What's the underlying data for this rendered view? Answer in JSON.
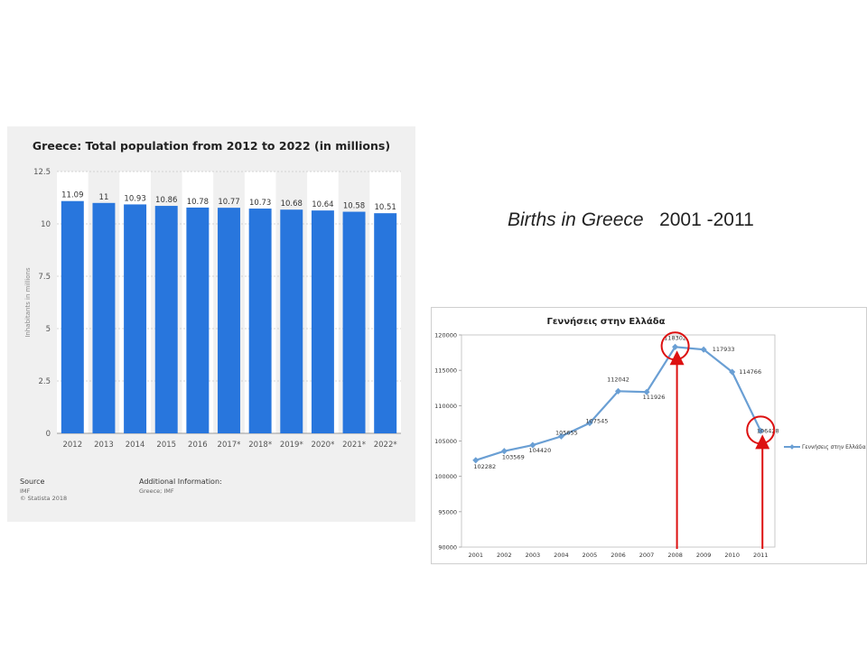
{
  "heading": {
    "italic_part": "Births in Greece",
    "years_part": "2001 -2011"
  },
  "bar_source": {
    "label": "Source",
    "source": "IMF",
    "copyright": "© Statista 2018",
    "additional_label": "Additional Information:",
    "additional_text": "Greece; IMF"
  },
  "colors": {
    "bar": "#2876dd",
    "line": "#6a9fd4",
    "annotation": "#dd1111"
  },
  "chart_data": [
    {
      "type": "bar",
      "title": "Greece: Total population from 2012 to 2022 (in millions)",
      "xlabel": "",
      "ylabel": "Inhabitants in millions",
      "categories": [
        "2012",
        "2013",
        "2014",
        "2015",
        "2016",
        "2017*",
        "2018*",
        "2019*",
        "2020*",
        "2021*",
        "2022*"
      ],
      "values": [
        11.09,
        11,
        10.93,
        10.86,
        10.78,
        10.77,
        10.73,
        10.68,
        10.64,
        10.58,
        10.51
      ],
      "data_labels": [
        "11.09",
        "11",
        "10.93",
        "10.86",
        "10.78",
        "10.77",
        "10.73",
        "10.68",
        "10.64",
        "10.58",
        "10.51"
      ],
      "y_ticks": [
        "0",
        "2.5",
        "5",
        "7.5",
        "10",
        "12.5"
      ],
      "ylim": [
        0,
        12.5
      ],
      "grid": true,
      "legend": "none"
    },
    {
      "type": "line",
      "title": "Γεννήσεις στην Ελλάδα",
      "xlabel": "",
      "ylabel": "",
      "x": [
        "2001",
        "2002",
        "2003",
        "2004",
        "2005",
        "2006",
        "2007",
        "2008",
        "2009",
        "2010",
        "2011"
      ],
      "series": [
        {
          "name": "Γεννήσεις στην Ελλάδα",
          "values": [
            102282,
            103569,
            104420,
            105655,
            107545,
            112042,
            111926,
            118302,
            117933,
            114766,
            106428
          ],
          "labels": [
            "102282",
            "103569",
            "104420",
            "105655",
            "107545",
            "112042",
            "111926",
            "118302",
            "117933",
            "114766",
            "106428"
          ]
        }
      ],
      "y_ticks": [
        "90000",
        "95000",
        "100000",
        "105000",
        "110000",
        "115000",
        "120000"
      ],
      "ylim": [
        90000,
        120000
      ],
      "grid": false,
      "legend": "right",
      "highlighted_points": [
        "2008",
        "2011"
      ]
    }
  ]
}
